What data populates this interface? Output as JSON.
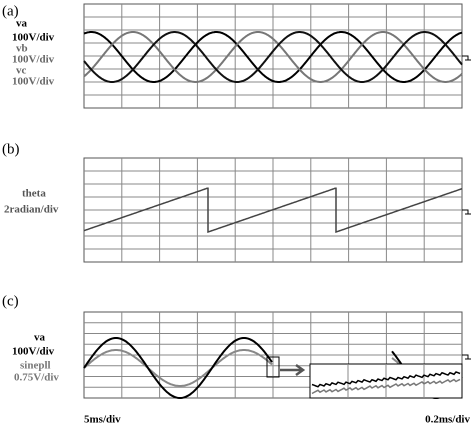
{
  "panels": [
    {
      "label": "(a)",
      "signals": [
        {
          "name": "va",
          "scale": "100V/div"
        },
        {
          "name": "vb",
          "scale": "100V/div"
        },
        {
          "name": "vc",
          "scale": "100V/div"
        }
      ]
    },
    {
      "label": "(b)",
      "signals": [
        {
          "name": "theta",
          "scale": "2radian/div"
        }
      ]
    },
    {
      "label": "(c)",
      "signals": [
        {
          "name": "va",
          "scale": "100V/div"
        },
        {
          "name": "sinepll",
          "scale": "0.75V/div"
        }
      ],
      "time_scale": "5ms/div",
      "inset_time_scale": "0.2ms/div"
    }
  ]
}
